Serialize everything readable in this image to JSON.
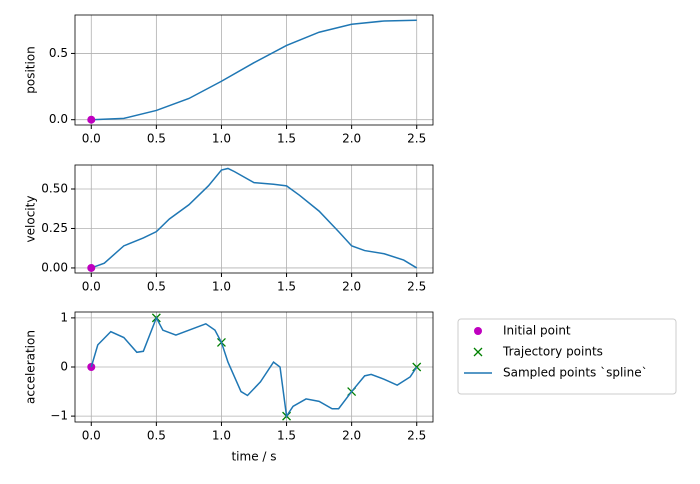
{
  "chart_data": [
    {
      "type": "line",
      "ylabel": "position",
      "grid": true,
      "xlim": [
        -0.125,
        2.625
      ],
      "xticks": [
        {
          "value": 0,
          "label": "0.0"
        },
        0.5,
        {
          "value": 1,
          "label": "1.0"
        },
        1.5,
        {
          "value": 2,
          "label": "2.0"
        },
        2.5
      ],
      "ylim": [
        -0.04,
        0.79
      ],
      "yticks": [
        {
          "value": 0,
          "label": "0.0"
        },
        0.5
      ],
      "series": [
        {
          "name": "Sampled points `spline`",
          "color": "#1f77b4",
          "marker": "none",
          "x": [
            0,
            0.25,
            0.5,
            0.75,
            1.0,
            1.25,
            1.5,
            1.75,
            2.0,
            2.25,
            2.5
          ],
          "values": [
            0,
            0.01,
            0.07,
            0.16,
            0.29,
            0.43,
            0.56,
            0.66,
            0.72,
            0.745,
            0.75
          ]
        },
        {
          "name": "Initial point",
          "color": "#bf00bf",
          "marker": "o",
          "x": [
            0
          ],
          "values": [
            0
          ]
        }
      ]
    },
    {
      "type": "line",
      "ylabel": "velocity",
      "grid": true,
      "xlim": [
        -0.125,
        2.625
      ],
      "xticks": [
        {
          "value": 0,
          "label": "0.0"
        },
        0.5,
        {
          "value": 1,
          "label": "1.0"
        },
        1.5,
        {
          "value": 2,
          "label": "2.0"
        },
        2.5
      ],
      "ylim": [
        -0.032,
        0.652
      ],
      "yticks": [
        {
          "value": 0,
          "label": "0.00"
        },
        {
          "value": 0.25,
          "label": "0.25"
        },
        {
          "value": 0.5,
          "label": "0.50"
        }
      ],
      "series": [
        {
          "name": "Sampled points `spline`",
          "color": "#1f77b4",
          "marker": "none",
          "x": [
            0,
            0.1,
            0.25,
            0.4,
            0.5,
            0.6,
            0.75,
            0.9,
            1.0,
            1.05,
            1.1,
            1.25,
            1.4,
            1.5,
            1.6,
            1.75,
            1.9,
            2.0,
            2.1,
            2.25,
            2.4,
            2.5
          ],
          "values": [
            0,
            0.03,
            0.14,
            0.19,
            0.23,
            0.31,
            0.4,
            0.52,
            0.62,
            0.63,
            0.61,
            0.54,
            0.53,
            0.52,
            0.46,
            0.36,
            0.23,
            0.14,
            0.11,
            0.09,
            0.05,
            0
          ]
        },
        {
          "name": "Initial point",
          "color": "#bf00bf",
          "marker": "o",
          "x": [
            0
          ],
          "values": [
            0
          ]
        }
      ]
    },
    {
      "type": "line",
      "ylabel": "acceleration",
      "xlabel": "time / s",
      "grid": true,
      "legend": "outside right",
      "xlim": [
        -0.125,
        2.625
      ],
      "xticks": [
        {
          "value": 0,
          "label": "0.0"
        },
        0.5,
        {
          "value": 1,
          "label": "1.0"
        },
        1.5,
        {
          "value": 2,
          "label": "2.0"
        },
        2.5
      ],
      "ylim": [
        -1.12,
        1.12
      ],
      "yticks": [
        {
          "value": -1,
          "label": "−1"
        },
        0,
        1
      ],
      "series": [
        {
          "name": "Initial point",
          "color": "#bf00bf",
          "marker": "o",
          "x": [
            0
          ],
          "values": [
            0
          ]
        },
        {
          "name": "Trajectory points",
          "color": "#008000",
          "marker": "x",
          "x": [
            0.5,
            1.0,
            1.5,
            2.0,
            2.5
          ],
          "values": [
            1.0,
            0.5,
            -1.0,
            -0.5,
            0
          ]
        },
        {
          "name": "Sampled points `spline`",
          "color": "#1f77b4",
          "marker": "none",
          "x": [
            0,
            0.05,
            0.15,
            0.25,
            0.35,
            0.4,
            0.5,
            0.55,
            0.65,
            0.75,
            0.88,
            0.95,
            1.0,
            1.05,
            1.15,
            1.2,
            1.3,
            1.4,
            1.45,
            1.5,
            1.55,
            1.65,
            1.75,
            1.85,
            1.9,
            2.0,
            2.1,
            2.15,
            2.25,
            2.35,
            2.45,
            2.5
          ],
          "values": [
            0,
            0.45,
            0.72,
            0.6,
            0.3,
            0.32,
            1.0,
            0.75,
            0.65,
            0.75,
            0.88,
            0.75,
            0.5,
            0.1,
            -0.5,
            -0.58,
            -0.3,
            0.1,
            0,
            -1.0,
            -0.8,
            -0.65,
            -0.7,
            -0.85,
            -0.85,
            -0.5,
            -0.18,
            -0.15,
            -0.25,
            -0.37,
            -0.2,
            0
          ]
        }
      ]
    }
  ]
}
